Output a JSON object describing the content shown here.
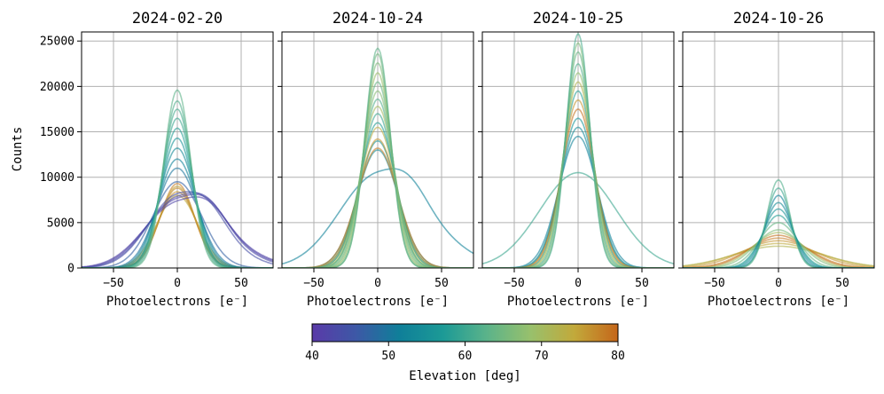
{
  "chart_data": {
    "type": "line",
    "ylabel": "Counts",
    "xlabel": "Photoelectrons [e⁻]",
    "xlim": [
      -75,
      75
    ],
    "ylim": [
      0,
      26000
    ],
    "xticks": [
      -50,
      0,
      50
    ],
    "xtick_labels": [
      "−50",
      "0",
      "50"
    ],
    "yticks": [
      0,
      5000,
      10000,
      15000,
      20000,
      25000
    ],
    "ytick_labels": [
      "0",
      "5000",
      "10000",
      "15000",
      "20000",
      "25000"
    ],
    "grid": true,
    "colorbar": {
      "label": "Elevation [deg]",
      "range": [
        40,
        80
      ],
      "ticks": [
        40,
        50,
        60,
        70,
        80
      ],
      "tick_labels": [
        "40",
        "50",
        "60",
        "70",
        "80"
      ],
      "colors": [
        "#5a3aa8",
        "#3d58a6",
        "#0f7f99",
        "#1c9a96",
        "#5bb38a",
        "#98c06c",
        "#c2a93b",
        "#c5661a"
      ]
    },
    "panels": [
      {
        "title": "2024-02-20",
        "series": [
          {
            "elevation": 74,
            "peak": 8000,
            "sigma": 16
          },
          {
            "elevation": 76,
            "peak": 8400,
            "sigma": 15
          },
          {
            "elevation": 77,
            "peak": 8800,
            "sigma": 14
          },
          {
            "elevation": 78,
            "peak": 9300,
            "sigma": 13.5
          },
          {
            "elevation": 75,
            "peak": 9000,
            "sigma": 14
          },
          {
            "elevation": 42,
            "peak": 7400,
            "sigma": 26,
            "skew": 0.7
          },
          {
            "elevation": 42,
            "peak": 7700,
            "sigma": 25,
            "skew": 0.7
          },
          {
            "elevation": 43,
            "peak": 7900,
            "sigma": 24,
            "skew": 0.7
          },
          {
            "elevation": 44,
            "peak": 8200,
            "sigma": 23,
            "skew": 0.6
          },
          {
            "elevation": 47,
            "peak": 9500,
            "sigma": 19
          },
          {
            "elevation": 50,
            "peak": 11000,
            "sigma": 16
          },
          {
            "elevation": 52,
            "peak": 12000,
            "sigma": 15
          },
          {
            "elevation": 54,
            "peak": 13200,
            "sigma": 14
          },
          {
            "elevation": 56,
            "peak": 14300,
            "sigma": 13
          },
          {
            "elevation": 58,
            "peak": 15400,
            "sigma": 12.5
          },
          {
            "elevation": 60,
            "peak": 16500,
            "sigma": 12
          },
          {
            "elevation": 61,
            "peak": 17500,
            "sigma": 11.5
          },
          {
            "elevation": 62,
            "peak": 18400,
            "sigma": 11
          },
          {
            "elevation": 63,
            "peak": 19600,
            "sigma": 10.5
          }
        ]
      },
      {
        "title": "2024-10-24",
        "series": [
          {
            "elevation": 52,
            "peak": 10600,
            "sigma": 30,
            "skew": 0.5
          },
          {
            "elevation": 54,
            "peak": 13000,
            "sigma": 16
          },
          {
            "elevation": 56,
            "peak": 14000,
            "sigma": 15
          },
          {
            "elevation": 78,
            "peak": 13200,
            "sigma": 16
          },
          {
            "elevation": 76,
            "peak": 14200,
            "sigma": 15
          },
          {
            "elevation": 73,
            "peak": 15500,
            "sigma": 14
          },
          {
            "elevation": 58,
            "peak": 16000,
            "sigma": 14
          },
          {
            "elevation": 60,
            "peak": 17000,
            "sigma": 13
          },
          {
            "elevation": 70,
            "peak": 17800,
            "sigma": 13
          },
          {
            "elevation": 62,
            "peak": 18600,
            "sigma": 12.5
          },
          {
            "elevation": 67,
            "peak": 19500,
            "sigma": 12
          },
          {
            "elevation": 64,
            "peak": 20500,
            "sigma": 11.5
          },
          {
            "elevation": 69,
            "peak": 21500,
            "sigma": 11
          },
          {
            "elevation": 66,
            "peak": 22600,
            "sigma": 10.5
          },
          {
            "elevation": 65,
            "peak": 23600,
            "sigma": 10
          },
          {
            "elevation": 63,
            "peak": 24200,
            "sigma": 10
          }
        ]
      },
      {
        "title": "2024-10-25",
        "series": [
          {
            "elevation": 60,
            "peak": 10500,
            "sigma": 30
          },
          {
            "elevation": 52,
            "peak": 14500,
            "sigma": 15
          },
          {
            "elevation": 54,
            "peak": 15500,
            "sigma": 14
          },
          {
            "elevation": 56,
            "peak": 16500,
            "sigma": 13.5
          },
          {
            "elevation": 79,
            "peak": 17500,
            "sigma": 13
          },
          {
            "elevation": 76,
            "peak": 18500,
            "sigma": 12.5
          },
          {
            "elevation": 58,
            "peak": 19500,
            "sigma": 12
          },
          {
            "elevation": 72,
            "peak": 20500,
            "sigma": 11.5
          },
          {
            "elevation": 68,
            "peak": 21500,
            "sigma": 11
          },
          {
            "elevation": 62,
            "peak": 22500,
            "sigma": 10.5
          },
          {
            "elevation": 64,
            "peak": 23800,
            "sigma": 10
          },
          {
            "elevation": 66,
            "peak": 24800,
            "sigma": 9.5
          },
          {
            "elevation": 61,
            "peak": 25800,
            "sigma": 9.2
          }
        ]
      },
      {
        "title": "2024-10-26",
        "series": [
          {
            "elevation": 72,
            "peak": 2400,
            "sigma": 35
          },
          {
            "elevation": 74,
            "peak": 2700,
            "sigma": 32
          },
          {
            "elevation": 76,
            "peak": 3000,
            "sigma": 28
          },
          {
            "elevation": 78,
            "peak": 3300,
            "sigma": 24
          },
          {
            "elevation": 79,
            "peak": 3600,
            "sigma": 22
          },
          {
            "elevation": 70,
            "peak": 3900,
            "sigma": 20
          },
          {
            "elevation": 66,
            "peak": 4200,
            "sigma": 18
          },
          {
            "elevation": 64,
            "peak": 5000,
            "sigma": 15
          },
          {
            "elevation": 58,
            "peak": 5800,
            "sigma": 13
          },
          {
            "elevation": 56,
            "peak": 6500,
            "sigma": 12
          },
          {
            "elevation": 54,
            "peak": 7200,
            "sigma": 11
          },
          {
            "elevation": 52,
            "peak": 8000,
            "sigma": 10
          },
          {
            "elevation": 60,
            "peak": 8800,
            "sigma": 9.5
          },
          {
            "elevation": 62,
            "peak": 9700,
            "sigma": 9
          }
        ]
      }
    ]
  }
}
